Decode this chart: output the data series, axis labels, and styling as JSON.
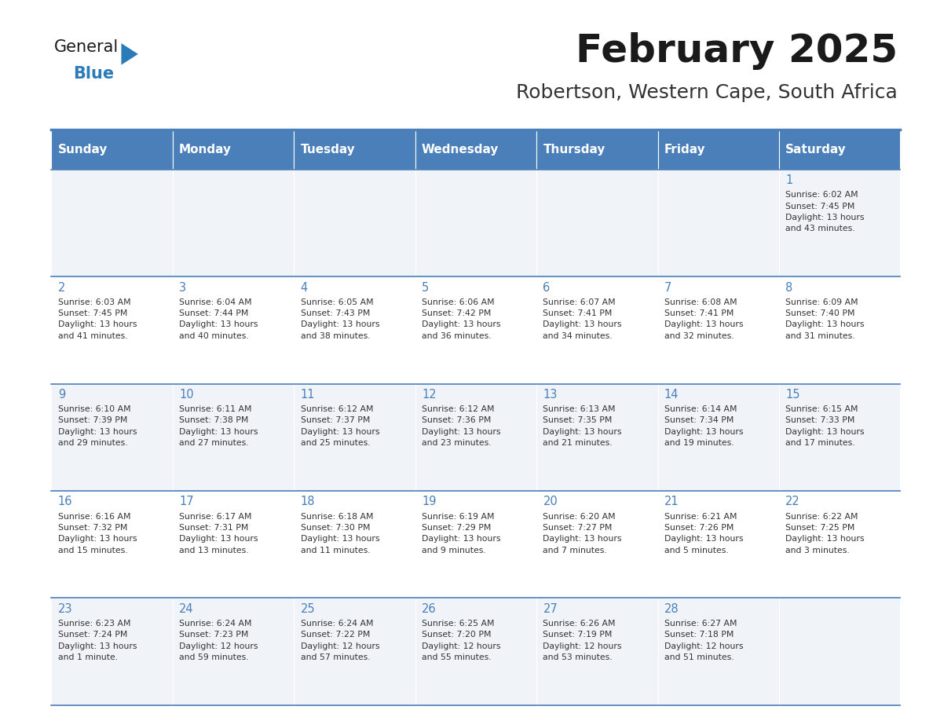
{
  "title": "February 2025",
  "subtitle": "Robertson, Western Cape, South Africa",
  "header_bg": "#4a7fba",
  "header_text": "#FFFFFF",
  "row_bg_odd": "#f0f4f8",
  "row_bg_even": "#FFFFFF",
  "border_color": "#4a7fba",
  "title_color": "#1a1a1a",
  "subtitle_color": "#333333",
  "day_num_color": "#4a7fba",
  "cell_text_color": "#333333",
  "days_of_week": [
    "Sunday",
    "Monday",
    "Tuesday",
    "Wednesday",
    "Thursday",
    "Friday",
    "Saturday"
  ],
  "logo_triangle_color": "#2B7BB9",
  "weeks": [
    [
      {
        "day": null,
        "info": null
      },
      {
        "day": null,
        "info": null
      },
      {
        "day": null,
        "info": null
      },
      {
        "day": null,
        "info": null
      },
      {
        "day": null,
        "info": null
      },
      {
        "day": null,
        "info": null
      },
      {
        "day": "1",
        "info": "Sunrise: 6:02 AM\nSunset: 7:45 PM\nDaylight: 13 hours\nand 43 minutes."
      }
    ],
    [
      {
        "day": "2",
        "info": "Sunrise: 6:03 AM\nSunset: 7:45 PM\nDaylight: 13 hours\nand 41 minutes."
      },
      {
        "day": "3",
        "info": "Sunrise: 6:04 AM\nSunset: 7:44 PM\nDaylight: 13 hours\nand 40 minutes."
      },
      {
        "day": "4",
        "info": "Sunrise: 6:05 AM\nSunset: 7:43 PM\nDaylight: 13 hours\nand 38 minutes."
      },
      {
        "day": "5",
        "info": "Sunrise: 6:06 AM\nSunset: 7:42 PM\nDaylight: 13 hours\nand 36 minutes."
      },
      {
        "day": "6",
        "info": "Sunrise: 6:07 AM\nSunset: 7:41 PM\nDaylight: 13 hours\nand 34 minutes."
      },
      {
        "day": "7",
        "info": "Sunrise: 6:08 AM\nSunset: 7:41 PM\nDaylight: 13 hours\nand 32 minutes."
      },
      {
        "day": "8",
        "info": "Sunrise: 6:09 AM\nSunset: 7:40 PM\nDaylight: 13 hours\nand 31 minutes."
      }
    ],
    [
      {
        "day": "9",
        "info": "Sunrise: 6:10 AM\nSunset: 7:39 PM\nDaylight: 13 hours\nand 29 minutes."
      },
      {
        "day": "10",
        "info": "Sunrise: 6:11 AM\nSunset: 7:38 PM\nDaylight: 13 hours\nand 27 minutes."
      },
      {
        "day": "11",
        "info": "Sunrise: 6:12 AM\nSunset: 7:37 PM\nDaylight: 13 hours\nand 25 minutes."
      },
      {
        "day": "12",
        "info": "Sunrise: 6:12 AM\nSunset: 7:36 PM\nDaylight: 13 hours\nand 23 minutes."
      },
      {
        "day": "13",
        "info": "Sunrise: 6:13 AM\nSunset: 7:35 PM\nDaylight: 13 hours\nand 21 minutes."
      },
      {
        "day": "14",
        "info": "Sunrise: 6:14 AM\nSunset: 7:34 PM\nDaylight: 13 hours\nand 19 minutes."
      },
      {
        "day": "15",
        "info": "Sunrise: 6:15 AM\nSunset: 7:33 PM\nDaylight: 13 hours\nand 17 minutes."
      }
    ],
    [
      {
        "day": "16",
        "info": "Sunrise: 6:16 AM\nSunset: 7:32 PM\nDaylight: 13 hours\nand 15 minutes."
      },
      {
        "day": "17",
        "info": "Sunrise: 6:17 AM\nSunset: 7:31 PM\nDaylight: 13 hours\nand 13 minutes."
      },
      {
        "day": "18",
        "info": "Sunrise: 6:18 AM\nSunset: 7:30 PM\nDaylight: 13 hours\nand 11 minutes."
      },
      {
        "day": "19",
        "info": "Sunrise: 6:19 AM\nSunset: 7:29 PM\nDaylight: 13 hours\nand 9 minutes."
      },
      {
        "day": "20",
        "info": "Sunrise: 6:20 AM\nSunset: 7:27 PM\nDaylight: 13 hours\nand 7 minutes."
      },
      {
        "day": "21",
        "info": "Sunrise: 6:21 AM\nSunset: 7:26 PM\nDaylight: 13 hours\nand 5 minutes."
      },
      {
        "day": "22",
        "info": "Sunrise: 6:22 AM\nSunset: 7:25 PM\nDaylight: 13 hours\nand 3 minutes."
      }
    ],
    [
      {
        "day": "23",
        "info": "Sunrise: 6:23 AM\nSunset: 7:24 PM\nDaylight: 13 hours\nand 1 minute."
      },
      {
        "day": "24",
        "info": "Sunrise: 6:24 AM\nSunset: 7:23 PM\nDaylight: 12 hours\nand 59 minutes."
      },
      {
        "day": "25",
        "info": "Sunrise: 6:24 AM\nSunset: 7:22 PM\nDaylight: 12 hours\nand 57 minutes."
      },
      {
        "day": "26",
        "info": "Sunrise: 6:25 AM\nSunset: 7:20 PM\nDaylight: 12 hours\nand 55 minutes."
      },
      {
        "day": "27",
        "info": "Sunrise: 6:26 AM\nSunset: 7:19 PM\nDaylight: 12 hours\nand 53 minutes."
      },
      {
        "day": "28",
        "info": "Sunrise: 6:27 AM\nSunset: 7:18 PM\nDaylight: 12 hours\nand 51 minutes."
      },
      {
        "day": null,
        "info": null
      }
    ]
  ]
}
